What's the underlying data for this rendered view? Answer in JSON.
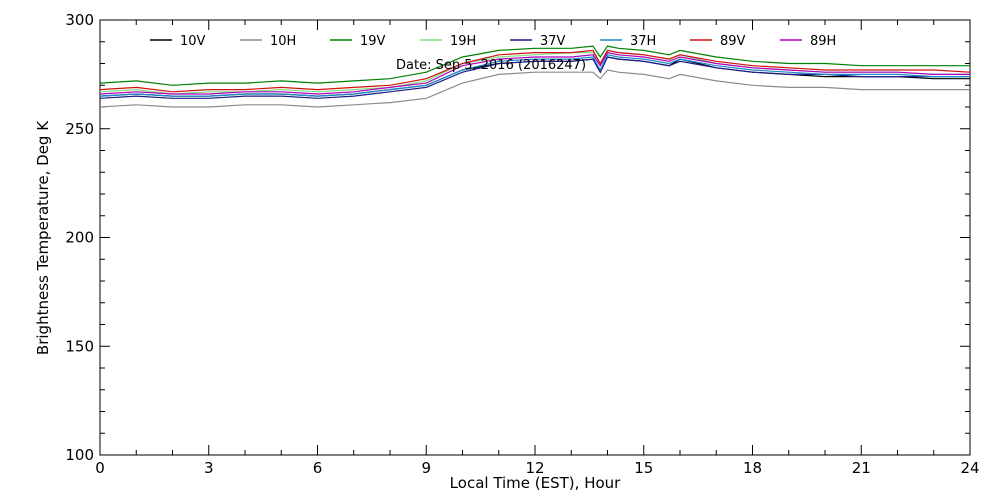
{
  "chart_data": {
    "type": "line",
    "title": "",
    "annotation": "Date: Sep  5, 2016 (2016247)",
    "xlabel": "Local Time (EST), Hour",
    "ylabel": "Brightness Temperature, Deg K",
    "xlim": [
      0,
      24
    ],
    "ylim": [
      100,
      300
    ],
    "xticks": [
      0,
      3,
      6,
      9,
      12,
      15,
      18,
      21,
      24
    ],
    "yticks": [
      100,
      150,
      200,
      250,
      300
    ],
    "grid": false,
    "legend_position": "top",
    "x": [
      0,
      1,
      2,
      3,
      4,
      5,
      6,
      7,
      8,
      9,
      10,
      11,
      12,
      13,
      13.6,
      13.8,
      14,
      14.3,
      15,
      15.7,
      16,
      17,
      18,
      19,
      20,
      21,
      22,
      23,
      24
    ],
    "series": [
      {
        "name": "10V",
        "color": "#000000",
        "values": [
          265,
          266,
          265,
          265,
          266,
          266,
          265,
          266,
          268,
          270,
          277,
          280,
          281,
          281,
          282,
          276,
          283,
          282,
          281,
          279,
          282,
          278,
          276,
          275,
          274,
          274,
          274,
          273,
          273
        ]
      },
      {
        "name": "10H",
        "color": "#8c8c8c",
        "values": [
          260,
          261,
          260,
          260,
          261,
          261,
          260,
          261,
          262,
          264,
          271,
          275,
          276,
          276,
          276,
          273,
          277,
          276,
          275,
          273,
          275,
          272,
          270,
          269,
          269,
          268,
          268,
          268,
          268
        ]
      },
      {
        "name": "19V",
        "color": "#008000",
        "values": [
          271,
          272,
          270,
          271,
          271,
          272,
          271,
          272,
          273,
          276,
          283,
          286,
          287,
          287,
          288,
          283,
          288,
          287,
          286,
          284,
          286,
          283,
          281,
          280,
          280,
          279,
          279,
          279,
          279
        ]
      },
      {
        "name": "19H",
        "color": "#7fe07f",
        "values": [
          267,
          268,
          266,
          267,
          267,
          268,
          267,
          268,
          269,
          272,
          280,
          283,
          284,
          285,
          285,
          280,
          286,
          285,
          284,
          282,
          284,
          280,
          278,
          277,
          276,
          276,
          276,
          275,
          275
        ]
      },
      {
        "name": "37V",
        "color": "#1c1c8c",
        "values": [
          264,
          265,
          264,
          264,
          265,
          265,
          264,
          265,
          267,
          269,
          276,
          280,
          281,
          281,
          282,
          276,
          283,
          282,
          281,
          279,
          281,
          278,
          276,
          275,
          275,
          274,
          274,
          274,
          274
        ]
      },
      {
        "name": "37H",
        "color": "#1a8cc8",
        "values": [
          265,
          266,
          265,
          265,
          266,
          266,
          265,
          266,
          268,
          270,
          277,
          281,
          282,
          282,
          283,
          277,
          284,
          283,
          282,
          280,
          282,
          279,
          277,
          276,
          275,
          275,
          275,
          274,
          274
        ]
      },
      {
        "name": "89V",
        "color": "#d01010",
        "values": [
          268,
          269,
          267,
          268,
          268,
          269,
          268,
          269,
          270,
          273,
          280,
          284,
          285,
          285,
          286,
          280,
          286,
          285,
          284,
          282,
          284,
          281,
          279,
          278,
          277,
          277,
          277,
          277,
          276
        ]
      },
      {
        "name": "89H",
        "color": "#b000c0",
        "values": [
          266,
          267,
          266,
          266,
          267,
          267,
          266,
          267,
          269,
          271,
          279,
          282,
          283,
          283,
          284,
          279,
          285,
          284,
          283,
          281,
          283,
          280,
          278,
          277,
          276,
          276,
          276,
          275,
          275
        ]
      }
    ]
  }
}
